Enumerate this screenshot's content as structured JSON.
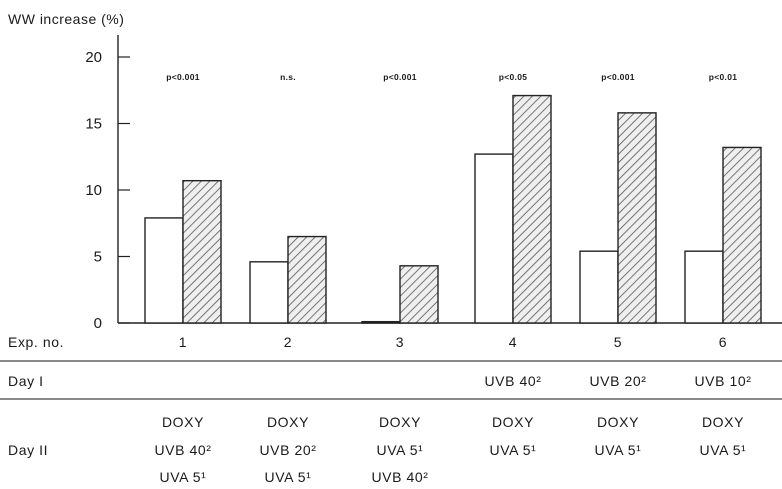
{
  "chart_data": {
    "type": "bar",
    "ylabel": "WW increase (%)",
    "ylim": [
      0,
      20
    ],
    "yticks": [
      0,
      5,
      10,
      15,
      20
    ],
    "categories": [
      "1",
      "2",
      "3",
      "4",
      "5",
      "6"
    ],
    "series": [
      {
        "style": "open",
        "values": [
          7.9,
          4.6,
          0.1,
          12.7,
          5.4,
          5.4
        ]
      },
      {
        "style": "hatched",
        "values": [
          10.7,
          6.5,
          4.3,
          17.1,
          15.8,
          13.2
        ]
      }
    ],
    "pvalues": [
      "p<0.001",
      "n.s.",
      "p<0.001",
      "p<0.05",
      "p<0.001",
      "p<0.01"
    ],
    "row_labels": {
      "exp": "Exp. no.",
      "day1": "Day I",
      "day2": "Day II"
    },
    "day1": [
      "",
      "",
      "",
      "UVB 40²",
      "UVB 20²",
      "UVB 10²"
    ],
    "day2": [
      [
        "DOXY",
        "UVB 40²",
        "UVA 5¹"
      ],
      [
        "DOXY",
        "UVB 20²",
        "UVA 5¹"
      ],
      [
        "DOXY",
        "UVA 5¹",
        "UVB 40²"
      ],
      [
        "DOXY",
        "UVA 5¹"
      ],
      [
        "DOXY",
        "UVA 5¹"
      ],
      [
        "DOXY",
        "UVA 5¹"
      ]
    ],
    "colors": {
      "open": "#ffffff",
      "hatch_fill": "#efefef",
      "hatch_line": "#555555",
      "axis": "#222222"
    }
  }
}
